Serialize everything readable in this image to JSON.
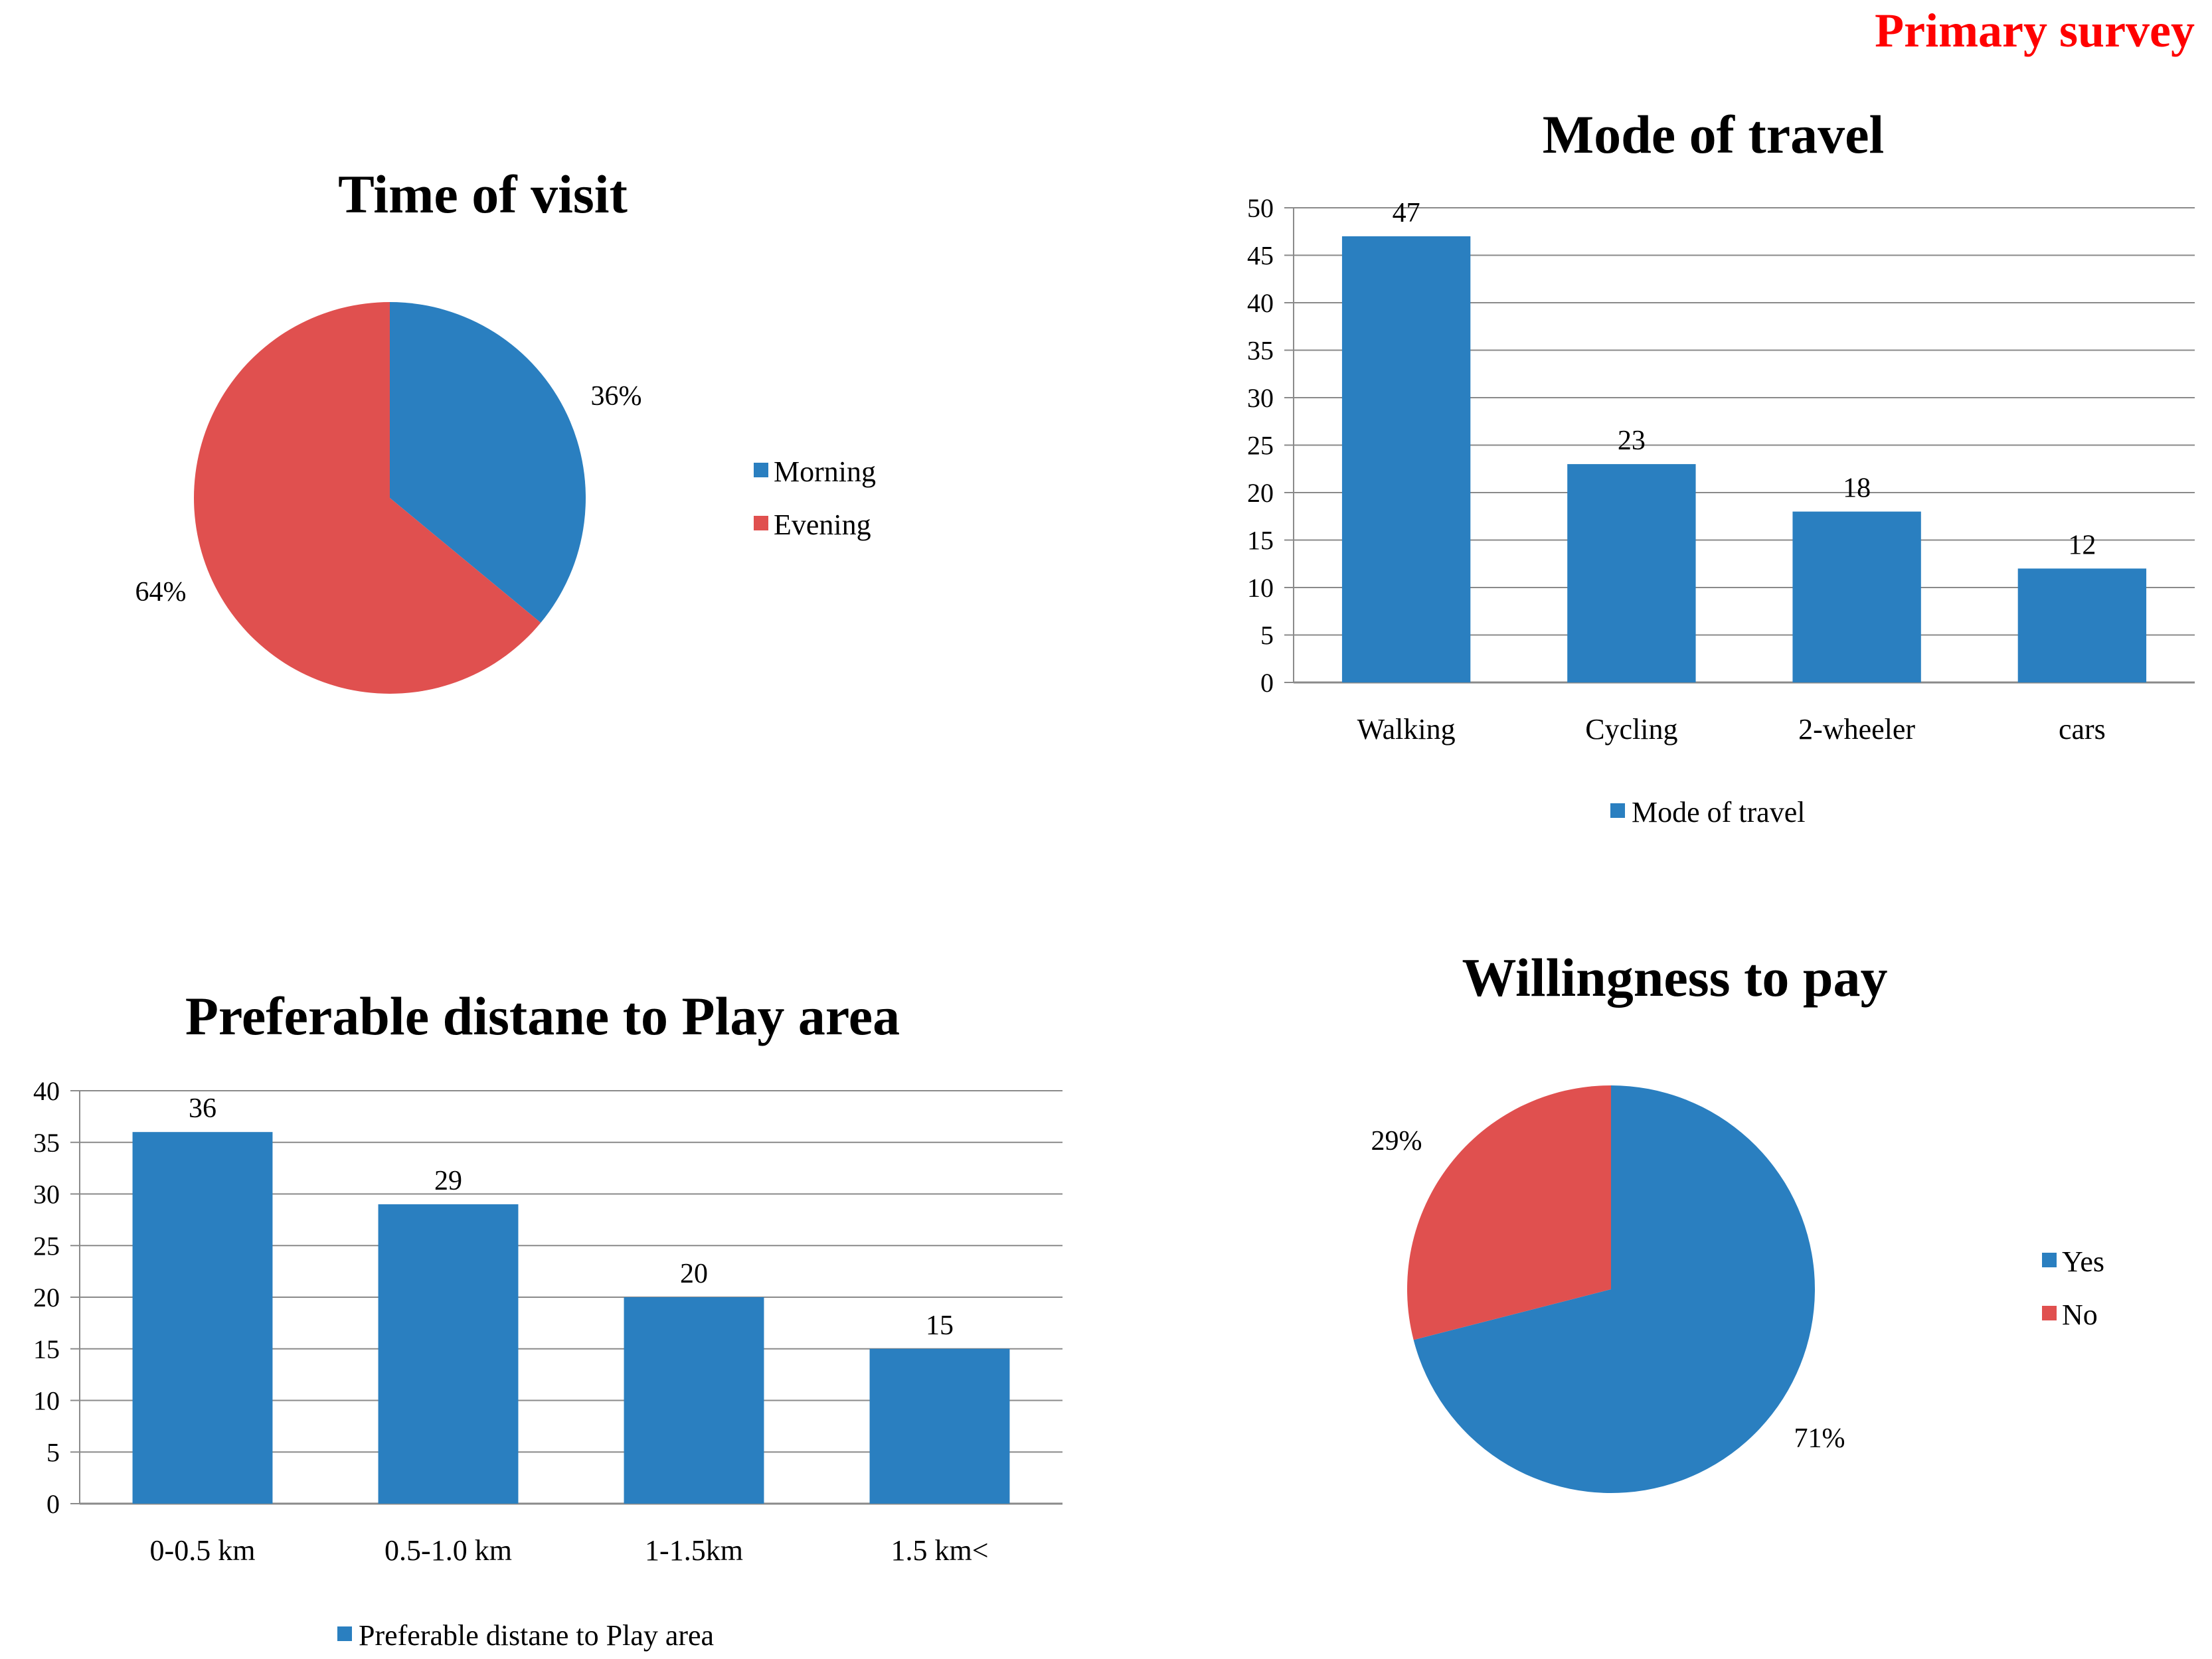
{
  "page": {
    "heading": "Primary survey",
    "heading_color": "#ff0000"
  },
  "chart_data": [
    {
      "id": "time-of-visit",
      "type": "pie",
      "title": "Time of visit",
      "slices": [
        {
          "label": "Morning",
          "value": 36,
          "display": "36%",
          "color": "#2a7fc0"
        },
        {
          "label": "Evening",
          "value": 64,
          "display": "64%",
          "color": "#e0504f"
        }
      ],
      "legend_position": "right"
    },
    {
      "id": "mode-of-travel",
      "type": "bar",
      "title": "Mode of travel",
      "categories": [
        "Walking",
        "Cycling",
        "2-wheeler",
        "cars"
      ],
      "series": [
        {
          "name": "Mode of travel",
          "values": [
            47,
            23,
            18,
            12
          ],
          "color": "#2a7fc0"
        }
      ],
      "ylim": [
        0,
        50
      ],
      "yticks": [
        0,
        5,
        10,
        15,
        20,
        25,
        30,
        35,
        40,
        45,
        50
      ],
      "grid": true,
      "legend_position": "bottom"
    },
    {
      "id": "preferable-distance",
      "type": "bar",
      "title": "Preferable distane to Play area",
      "categories": [
        "0-0.5 km",
        "0.5-1.0 km",
        "1-1.5km",
        "1.5 km<"
      ],
      "series": [
        {
          "name": "Preferable distane to Play area",
          "values": [
            36,
            29,
            20,
            15
          ],
          "color": "#2a7fc0"
        }
      ],
      "ylim": [
        0,
        40
      ],
      "yticks": [
        0,
        5,
        10,
        15,
        20,
        25,
        30,
        35,
        40
      ],
      "grid": true,
      "legend_position": "bottom"
    },
    {
      "id": "willingness-to-pay",
      "type": "pie",
      "title": "Willingness to pay",
      "slices": [
        {
          "label": "Yes",
          "value": 71,
          "display": "71%",
          "color": "#2a7fc0"
        },
        {
          "label": "No",
          "value": 29,
          "display": "29%",
          "color": "#e0504f"
        }
      ],
      "legend_position": "right"
    }
  ]
}
